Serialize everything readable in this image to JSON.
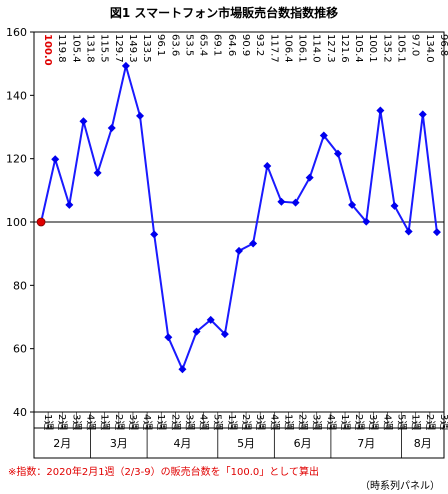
{
  "title": "図1 スマートフォン市場販売台数指数推移",
  "footnote": "※指数：2020年2月1週（2/3-9）の販売台数を「100.0」として算出",
  "source": "（時系列パネル）",
  "colors": {
    "line": "#1a1aff",
    "marker": "#0000ee",
    "highlight": "#e00000",
    "reference": "#000000"
  },
  "chart_data": {
    "type": "line",
    "ylim": [
      40,
      160
    ],
    "yticks": [
      40,
      60,
      80,
      100,
      120,
      140,
      160
    ],
    "grid": false,
    "reference_line": 100,
    "value_labels": [
      "100.0",
      "119.8",
      "105.4",
      "131.8",
      "115.5",
      "129.7",
      "149.3",
      "133.5",
      "96.1",
      "63.6",
      "53.5",
      "65.4",
      "69.1",
      "64.6",
      "90.9",
      "93.2",
      "117.7",
      "106.4",
      "106.1",
      "114.0",
      "127.3",
      "121.6",
      "105.4",
      "100.1",
      "135.2",
      "105.1",
      "97.0",
      "134.0",
      "96.8"
    ],
    "x": [
      "1週",
      "2週",
      "3週",
      "4週",
      "1週",
      "2週",
      "3週",
      "4週",
      "1週",
      "2週",
      "3週",
      "4週",
      "5週",
      "1週",
      "2週",
      "3週",
      "4週",
      "1週",
      "2週",
      "3週",
      "4週",
      "1週",
      "2週",
      "3週",
      "4週",
      "5週",
      "1週",
      "2週",
      "3週"
    ],
    "months": [
      {
        "label": "2月",
        "weeks": 4
      },
      {
        "label": "3月",
        "weeks": 4
      },
      {
        "label": "4月",
        "weeks": 5
      },
      {
        "label": "5月",
        "weeks": 4
      },
      {
        "label": "6月",
        "weeks": 4
      },
      {
        "label": "7月",
        "weeks": 5
      },
      {
        "label": "8月",
        "weeks": 3
      }
    ],
    "series": [
      {
        "values": [
          100.0,
          119.8,
          105.4,
          131.8,
          115.5,
          129.7,
          149.3,
          133.5,
          96.1,
          63.6,
          53.5,
          65.4,
          69.1,
          64.6,
          90.9,
          93.2,
          117.7,
          106.4,
          106.1,
          114.0,
          127.3,
          121.6,
          105.4,
          100.1,
          135.2,
          105.1,
          97.0,
          134.0,
          96.8
        ]
      }
    ]
  }
}
